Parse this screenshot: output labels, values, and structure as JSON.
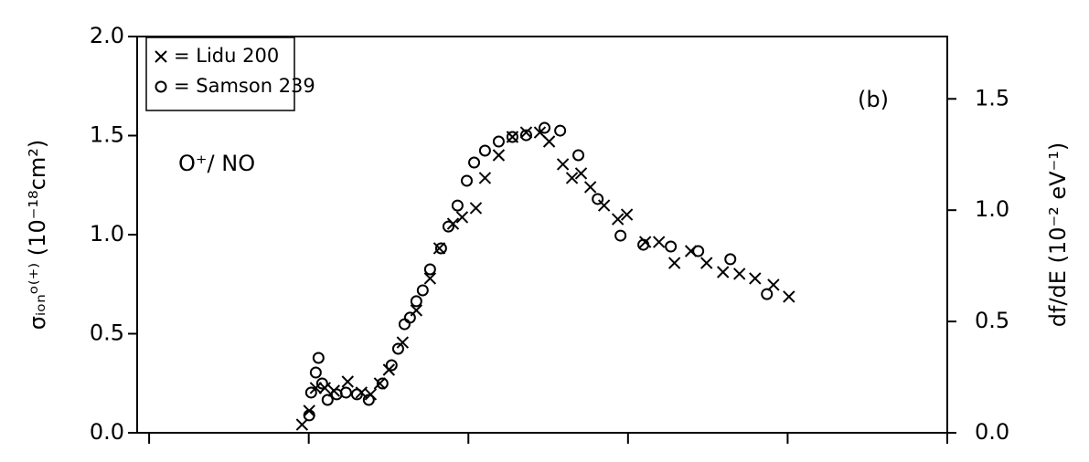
{
  "chart_data": {
    "type": "scatter",
    "annotations": [
      "(b)",
      "O⁺/ NO"
    ],
    "y_label": "σᵢₒₙᵒ⁽⁺⁾ (10⁻¹⁸cm²)",
    "y2_label": "df/dE (10⁻² eV⁻¹)",
    "xlim": [
      -0.075,
      5.0
    ],
    "xticks": [
      0,
      1,
      2,
      3,
      4,
      5
    ],
    "ylim": [
      0,
      2.0
    ],
    "yticks": [
      {
        "value": 0,
        "label": "0.0"
      },
      {
        "value": 0.5,
        "label": "0.5"
      },
      {
        "value": 1,
        "label": "1.0"
      },
      {
        "value": 1.5,
        "label": "1.5"
      },
      {
        "value": 2,
        "label": "2.0"
      }
    ],
    "y2lim": [
      0,
      1.78
    ],
    "y2ticks": [
      {
        "value": 0,
        "label": "0.0"
      },
      {
        "value": 0.5,
        "label": "0.5"
      },
      {
        "value": 1,
        "label": "1.0"
      },
      {
        "value": 1.5,
        "label": "1.5"
      }
    ],
    "legend": "upper left",
    "series": [
      {
        "name": "= Lidu 200",
        "marker": "x",
        "color": "#000000",
        "x": [
          0.958,
          1.003,
          1.044,
          1.101,
          1.158,
          1.244,
          1.33,
          1.388,
          1.445,
          1.502,
          1.588,
          1.674,
          1.76,
          1.818,
          1.904,
          1.961,
          2.047,
          2.104,
          2.19,
          2.276,
          2.362,
          2.448,
          2.506,
          2.592,
          2.649,
          2.706,
          2.764,
          2.85,
          2.936,
          2.993,
          3.108,
          3.194,
          3.291,
          3.394,
          3.492,
          3.595,
          3.698,
          3.796,
          3.911,
          4.008
        ],
        "values": [
          0.041,
          0.111,
          0.226,
          0.226,
          0.212,
          0.258,
          0.203,
          0.194,
          0.249,
          0.318,
          0.456,
          0.618,
          0.779,
          0.931,
          1.055,
          1.088,
          1.134,
          1.286,
          1.401,
          1.493,
          1.516,
          1.516,
          1.47,
          1.355,
          1.286,
          1.309,
          1.24,
          1.147,
          1.078,
          1.101,
          0.963,
          0.963,
          0.857,
          0.917,
          0.857,
          0.811,
          0.802,
          0.779,
          0.747,
          0.687
        ]
      },
      {
        "name": "= Samson 239",
        "marker": "o",
        "color": "#000000",
        "x": [
          1.003,
          1.015,
          1.044,
          1.061,
          1.084,
          1.118,
          1.175,
          1.233,
          1.302,
          1.376,
          1.462,
          1.519,
          1.56,
          1.6,
          1.634,
          1.674,
          1.714,
          1.76,
          1.829,
          1.875,
          1.932,
          1.99,
          2.036,
          2.104,
          2.19,
          2.276,
          2.362,
          2.477,
          2.575,
          2.689,
          2.81,
          2.953,
          3.096,
          3.268,
          3.44,
          3.641,
          3.87
        ],
        "values": [
          0.088,
          0.203,
          0.304,
          0.378,
          0.249,
          0.166,
          0.194,
          0.203,
          0.194,
          0.166,
          0.249,
          0.341,
          0.424,
          0.548,
          0.581,
          0.664,
          0.719,
          0.825,
          0.931,
          1.041,
          1.147,
          1.272,
          1.364,
          1.424,
          1.47,
          1.493,
          1.502,
          1.539,
          1.525,
          1.401,
          1.18,
          0.995,
          0.949,
          0.94,
          0.917,
          0.876,
          0.7
        ]
      }
    ]
  }
}
